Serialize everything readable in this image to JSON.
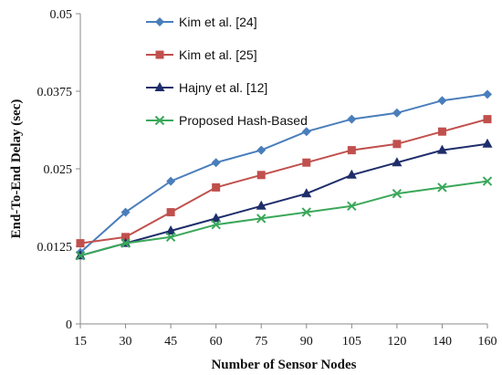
{
  "chart_data": {
    "type": "line",
    "xlabel": "Number  of Sensor Nodes",
    "ylabel": "End-To-End  Delay (sec)",
    "categories": [
      "15",
      "30",
      "45",
      "60",
      "75",
      "90",
      "105",
      "120",
      "140",
      "160"
    ],
    "y_ticks": [
      "0",
      "0.0125",
      "0.025",
      "0.0375",
      "0.05"
    ],
    "ylim": [
      0,
      0.05
    ],
    "grid": false,
    "legend_position": "top-left",
    "series": [
      {
        "name": "Kim et al. [24]",
        "color": "#4a7ebb",
        "marker": "diamond",
        "values": [
          0.0115,
          0.018,
          0.023,
          0.026,
          0.028,
          0.031,
          0.033,
          0.034,
          0.036,
          0.037
        ]
      },
      {
        "name": "Kim et al. [25]",
        "color": "#c0504d",
        "marker": "square",
        "values": [
          0.013,
          0.014,
          0.018,
          0.022,
          0.024,
          0.026,
          0.028,
          0.029,
          0.031,
          0.033
        ]
      },
      {
        "name": "Hajny et al. [12]",
        "color": "#1f2d6b",
        "marker": "triangle",
        "values": [
          0.011,
          0.013,
          0.015,
          0.017,
          0.019,
          0.021,
          0.024,
          0.026,
          0.028,
          0.029
        ]
      },
      {
        "name": "Proposed Hash-Based",
        "color": "#3aa85a",
        "marker": "x",
        "values": [
          0.011,
          0.013,
          0.014,
          0.016,
          0.017,
          0.018,
          0.019,
          0.021,
          0.022,
          0.023
        ]
      }
    ]
  }
}
